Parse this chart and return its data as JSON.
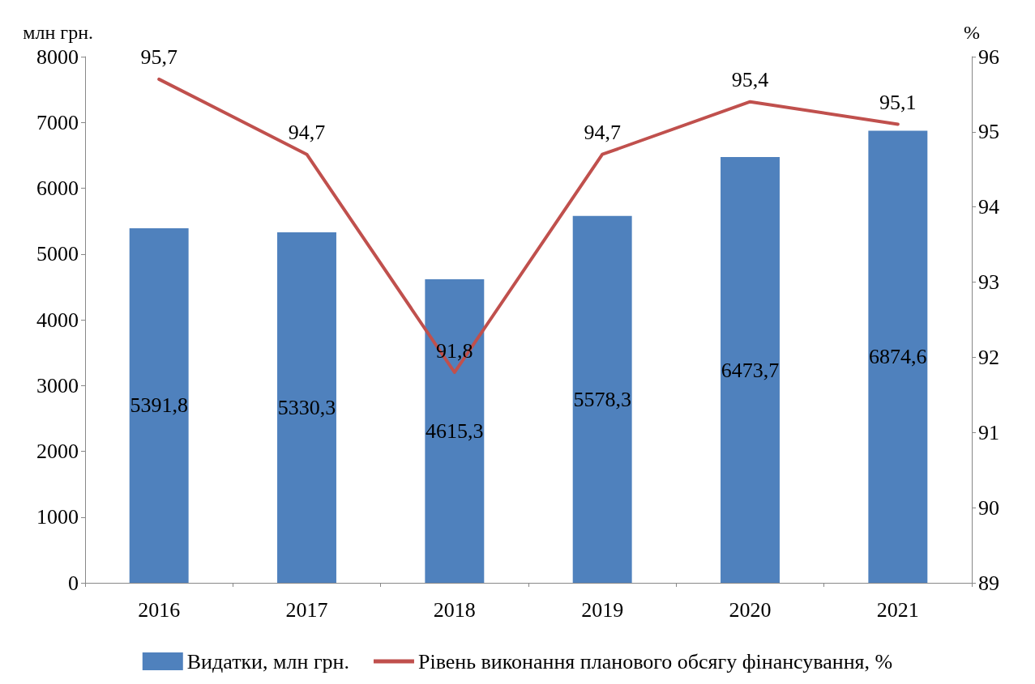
{
  "chart_data": {
    "type": "bar",
    "ylabel": "млн грн.",
    "y2label": "%",
    "categories": [
      "2016",
      "2017",
      "2018",
      "2019",
      "2020",
      "2021"
    ],
    "series": [
      {
        "name": "Видатки, млн грн.",
        "color": "#4f81bd",
        "values": [
          5391.8,
          5330.3,
          4615.3,
          5578.3,
          6473.7,
          6874.6
        ],
        "value_labels": [
          "5391,8",
          "5330,3",
          "4615,3",
          "5578,3",
          "6473,7",
          "6874,6"
        ]
      },
      {
        "name": "Рівень виконання планового обсягу фінансування, %",
        "type": "line",
        "axis": "y2",
        "color": "#c0504d",
        "values": [
          95.7,
          94.7,
          91.8,
          94.7,
          95.4,
          95.1
        ],
        "value_labels": [
          "95,7",
          "94,7",
          "91,8",
          "94,7",
          "95,4",
          "95,1"
        ],
        "marker": "none",
        "line_style": "solid"
      }
    ],
    "ylim": [
      0,
      8000
    ],
    "yticks": [
      0,
      1000,
      2000,
      3000,
      4000,
      5000,
      6000,
      7000,
      8000
    ],
    "y2lim": [
      89,
      96
    ],
    "y2ticks": [
      89,
      90,
      91,
      92,
      93,
      94,
      95,
      96
    ],
    "grid": false,
    "legend": "bottom"
  }
}
